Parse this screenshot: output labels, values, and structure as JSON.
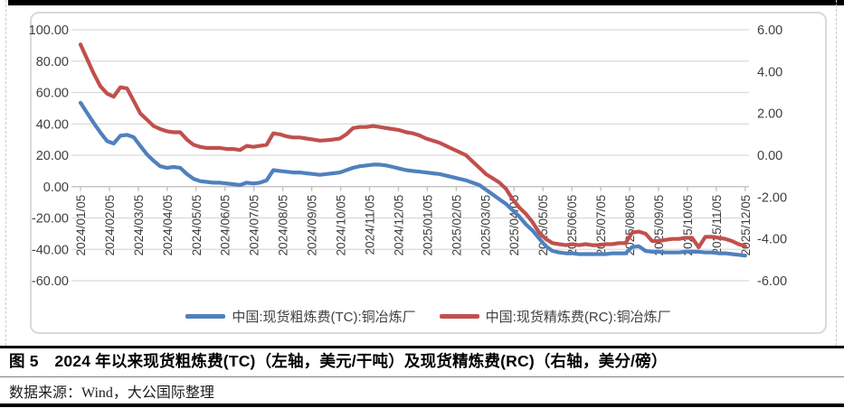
{
  "caption": {
    "text": "图 5　2024 年以来现货粗炼费(TC)（左轴，美元/干吨）及现货精炼费(RC)（右轴，美分/磅）"
  },
  "source": {
    "text": "数据来源：Wind，大公国际整理"
  },
  "chart_data": {
    "type": "line",
    "title": "",
    "grid": true,
    "legend_position": "bottom",
    "grid_color": "#d9d9d9",
    "axis_line_color": "#bfbfbf",
    "axis_text_color": "#404040",
    "x_tick_labels": [
      "2024/01/05",
      "2024/02/05",
      "2024/03/05",
      "2024/04/05",
      "2024/05/05",
      "2024/06/05",
      "2024/07/05",
      "2024/08/05",
      "2024/09/05",
      "2024/10/05",
      "2024/11/05",
      "2024/12/05",
      "2025/01/05",
      "2025/02/05",
      "2025/03/05",
      "2025/04/05",
      "2025/05/05",
      "2025/06/05",
      "2025/07/05",
      "2025/08/05",
      "2025/09/05",
      "2025/10/05",
      "2025/11/05",
      "2025/12/05"
    ],
    "left_axis": {
      "min": -60,
      "max": 100,
      "step": 20,
      "ticks": [
        "100.00",
        "80.00",
        "60.00",
        "40.00",
        "20.00",
        "0.00",
        "-20.00",
        "-40.00",
        "-60.00"
      ]
    },
    "right_axis": {
      "min": -6,
      "max": 6,
      "step": 2,
      "ticks": [
        "6.00",
        "4.00",
        "2.00",
        "0.00",
        "-2.00",
        "-4.00",
        "-6.00"
      ]
    },
    "x_note": "weekly observations from 2024/01/05 to 2025/12/05",
    "series": [
      {
        "name": "中国:现货粗炼费(TC):铜冶炼厂",
        "axis": "left",
        "color": "#4F81BD",
        "values": [
          53.5,
          47,
          40.5,
          34.5,
          29,
          27.5,
          32.5,
          33,
          31.5,
          26,
          20.5,
          16.5,
          13,
          12,
          12.5,
          12,
          8,
          5,
          3.5,
          3,
          2.5,
          2.5,
          2,
          1.5,
          1,
          2.5,
          2,
          2.5,
          4,
          10.5,
          10,
          9.5,
          9,
          9,
          8.5,
          8,
          7.5,
          8,
          8.5,
          9,
          10.5,
          12,
          13,
          13.5,
          14,
          14,
          13.5,
          12.5,
          11.5,
          10.5,
          10,
          9.5,
          9,
          8.5,
          8,
          7,
          6,
          5,
          4,
          2.5,
          1,
          -2,
          -5,
          -8,
          -11,
          -15,
          -19,
          -24,
          -28,
          -33,
          -38,
          -41,
          -42,
          -42.5,
          -42.5,
          -43,
          -43,
          -43,
          -43,
          -43,
          -42.5,
          -42.5,
          -42.5,
          -38.5,
          -38,
          -41,
          -41.5,
          -41.5,
          -42,
          -42,
          -42,
          -41.5,
          -41.5,
          -41.5,
          -42,
          -42,
          -42.5,
          -42.5,
          -43,
          -43.5,
          -44
        ]
      },
      {
        "name": "中国:现货精炼费(RC):铜冶炼厂",
        "axis": "right",
        "color": "#C0504D",
        "values": [
          5.3,
          4.6,
          3.9,
          3.3,
          2.95,
          2.8,
          3.25,
          3.2,
          2.6,
          2.0,
          1.7,
          1.4,
          1.25,
          1.15,
          1.1,
          1.1,
          0.75,
          0.5,
          0.4,
          0.35,
          0.35,
          0.35,
          0.3,
          0.3,
          0.25,
          0.45,
          0.4,
          0.45,
          0.5,
          1.05,
          1.0,
          0.9,
          0.85,
          0.85,
          0.8,
          0.75,
          0.7,
          0.72,
          0.75,
          0.8,
          1.0,
          1.3,
          1.35,
          1.35,
          1.4,
          1.35,
          1.3,
          1.25,
          1.2,
          1.1,
          1.05,
          0.95,
          0.8,
          0.7,
          0.6,
          0.45,
          0.3,
          0.15,
          0.0,
          -0.3,
          -0.6,
          -0.9,
          -1.1,
          -1.3,
          -1.6,
          -2.1,
          -2.5,
          -2.8,
          -3.2,
          -3.7,
          -4.0,
          -4.2,
          -4.25,
          -4.3,
          -4.25,
          -4.3,
          -4.25,
          -4.3,
          -4.3,
          -4.25,
          -4.25,
          -4.2,
          -4.2,
          -3.7,
          -3.65,
          -3.75,
          -4.1,
          -4.1,
          -4.05,
          -4.0,
          -4.0,
          -3.95,
          -3.95,
          -4.4,
          -3.9,
          -3.9,
          -3.95,
          -4.0,
          -4.1,
          -4.25,
          -4.35
        ]
      }
    ]
  }
}
